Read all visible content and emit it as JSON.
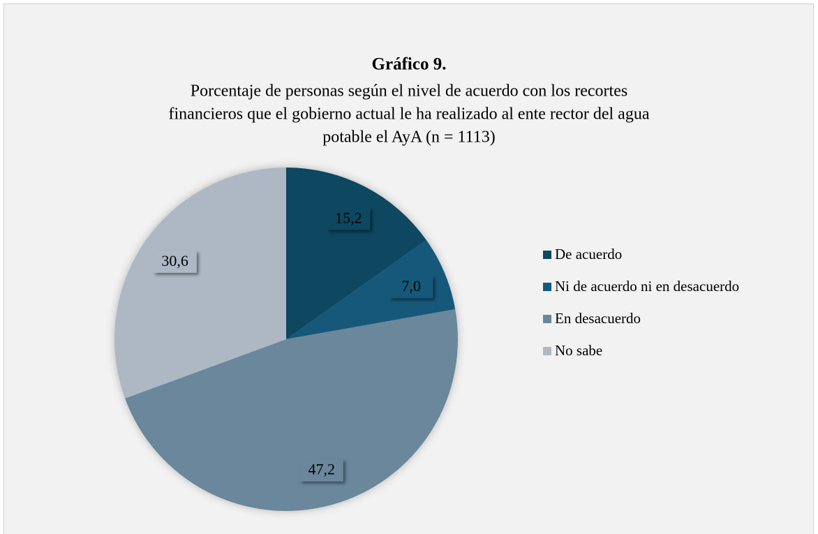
{
  "chart_data": {
    "type": "pie",
    "title": "Gráfico 9.",
    "subtitle": [
      "Porcentaje de personas según el nivel de acuerdo con los recortes",
      "financieros que el gobierno actual le ha realizado al ente rector del agua",
      "potable el AyA (n = 1113)"
    ],
    "categories": [
      "De acuerdo",
      "Ni de acuerdo ni en desacuerdo",
      "En desacuerdo",
      "No sabe"
    ],
    "values": [
      15.2,
      7.0,
      47.2,
      30.6
    ],
    "value_labels": [
      "15,2",
      "7,0",
      "47,2",
      "30,6"
    ],
    "colors": [
      "#0f4761",
      "#14597a",
      "#6a879c",
      "#adb8c4"
    ],
    "legend": "right"
  }
}
